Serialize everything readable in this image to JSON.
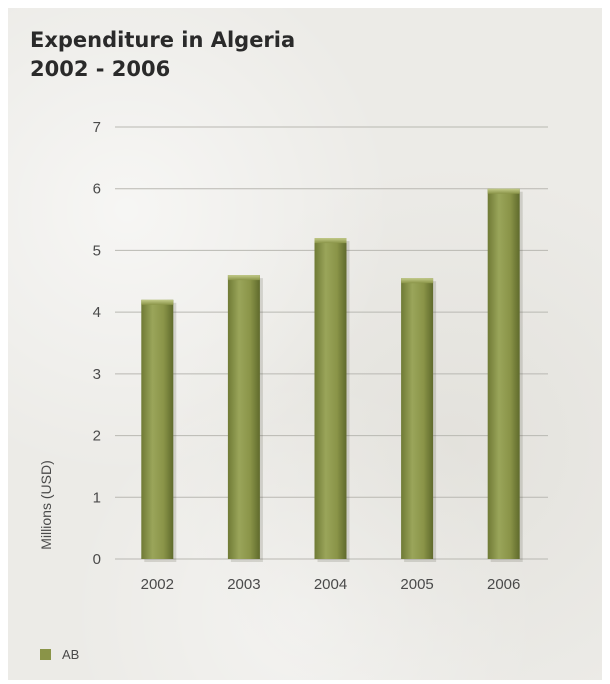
{
  "chart_data": {
    "type": "bar",
    "title_line1": "Expenditure in Algeria",
    "title_line2": "2002 - 2006",
    "xlabel": "",
    "ylabel": "Millions (USD)",
    "ylim": [
      0,
      7
    ],
    "yticks": [
      "0",
      "1",
      "2",
      "3",
      "4",
      "5",
      "6",
      "7"
    ],
    "categories": [
      "2002",
      "2003",
      "2004",
      "2005",
      "2006"
    ],
    "series": [
      {
        "name": "AB",
        "values": [
          4.2,
          4.6,
          5.2,
          4.55,
          6.0
        ]
      }
    ],
    "grid": true,
    "legend_position": "bottom-left",
    "bar_color": "#8a9448"
  }
}
